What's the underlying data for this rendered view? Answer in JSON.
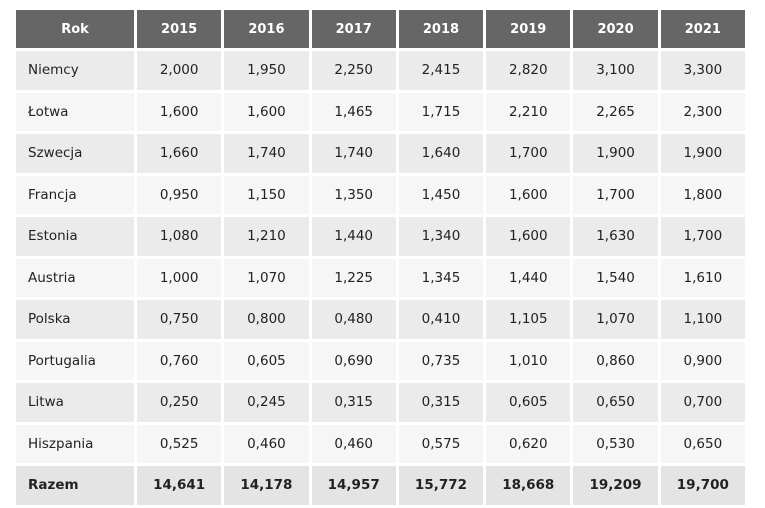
{
  "table": {
    "headers": [
      "Rok",
      "2015",
      "2016",
      "2017",
      "2018",
      "2019",
      "2020",
      "2021"
    ],
    "rows": [
      [
        "Niemcy",
        "2,000",
        "1,950",
        "2,250",
        "2,415",
        "2,820",
        "3,100",
        "3,300"
      ],
      [
        "Łotwa",
        "1,600",
        "1,600",
        "1,465",
        "1,715",
        "2,210",
        "2,265",
        "2,300"
      ],
      [
        "Szwecja",
        "1,660",
        "1,740",
        "1,740",
        "1,640",
        "1,700",
        "1,900",
        "1,900"
      ],
      [
        "Francja",
        "0,950",
        "1,150",
        "1,350",
        "1,450",
        "1,600",
        "1,700",
        "1,800"
      ],
      [
        "Estonia",
        "1,080",
        "1,210",
        "1,440",
        "1,340",
        "1,600",
        "1,630",
        "1,700"
      ],
      [
        "Austria",
        "1,000",
        "1,070",
        "1,225",
        "1,345",
        "1,440",
        "1,540",
        "1,610"
      ],
      [
        "Polska",
        "0,750",
        "0,800",
        "0,480",
        "0,410",
        "1,105",
        "1,070",
        "1,100"
      ],
      [
        "Portugalia",
        "0,760",
        "0,605",
        "0,690",
        "0,735",
        "1,010",
        "0,860",
        "0,900"
      ],
      [
        "Litwa",
        "0,250",
        "0,245",
        "0,315",
        "0,315",
        "0,605",
        "0,650",
        "0,700"
      ],
      [
        "Hiszpania",
        "0,525",
        "0,460",
        "0,460",
        "0,575",
        "0,620",
        "0,530",
        "0,650"
      ]
    ],
    "total": [
      "Razem",
      "14,641",
      "14,178",
      "14,957",
      "15,772",
      "18,668",
      "19,209",
      "19,700"
    ]
  }
}
